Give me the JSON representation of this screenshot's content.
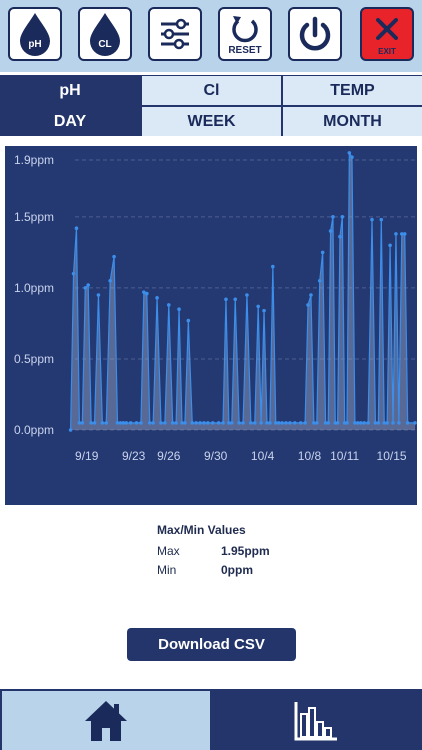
{
  "toolbar": {
    "ph_button": {
      "label": "pH",
      "icon": "ph-drop-icon"
    },
    "cl_button": {
      "label": "CL",
      "icon": "cl-drop-icon"
    },
    "settings_button": {
      "icon": "sliders-icon"
    },
    "reset_button": {
      "label": "RESET",
      "icon": "reset-icon"
    },
    "power_button": {
      "icon": "power-icon"
    },
    "exit_button": {
      "label": "EXIT",
      "icon": "close-icon"
    }
  },
  "tabs": {
    "sensor": [
      {
        "label": "pH",
        "active": true
      },
      {
        "label": "Cl",
        "active": false
      },
      {
        "label": "TEMP",
        "active": false
      }
    ],
    "range": [
      {
        "label": "DAY",
        "active": true
      },
      {
        "label": "WEEK",
        "active": false
      },
      {
        "label": "MONTH",
        "active": false
      }
    ]
  },
  "chart_data": {
    "type": "area",
    "title": "",
    "xlabel": "",
    "ylabel": "",
    "x_ticks": [
      "9/19",
      "9/23",
      "9/26",
      "9/30",
      "10/4",
      "10/8",
      "10/11",
      "10/15"
    ],
    "y_ticks": [
      "0.0ppm",
      "0.5ppm",
      "1.0ppm",
      "1.5ppm",
      "1.9ppm"
    ],
    "ylim": [
      0,
      1.9
    ],
    "xlim": [
      "9/18",
      "10/17"
    ],
    "grid": true,
    "colors": {
      "line": "#3b8eea",
      "fill": "#9aa6c4",
      "background": "#243872",
      "grid": "#4d5f92"
    },
    "series": [
      {
        "x": [
          "9/18",
          "9/18",
          "9/18",
          "9/18",
          "9/19",
          "9/19",
          "9/19",
          "9/19",
          "9/20",
          "9/20",
          "9/20",
          "9/21",
          "9/21",
          "9/21",
          "9/22",
          "9/22",
          "9/22",
          "9/22",
          "9/23",
          "9/23",
          "9/24",
          "9/24",
          "9/24",
          "9/24",
          "9/25",
          "9/25",
          "9/25",
          "9/26",
          "9/26",
          "9/26",
          "9/27",
          "9/27",
          "9/27",
          "9/27",
          "9/28",
          "9/28",
          "9/28",
          "9/29",
          "9/29",
          "9/29",
          "9/30",
          "9/30",
          "10/1",
          "10/1",
          "10/1",
          "10/1",
          "10/2",
          "10/2",
          "10/2",
          "10/3",
          "10/3",
          "10/3",
          "10/4",
          "10/4",
          "10/4",
          "10/4",
          "10/5",
          "10/5",
          "10/5",
          "10/5",
          "10/6",
          "10/6",
          "10/6",
          "10/7",
          "10/7",
          "10/8",
          "10/8",
          "10/8",
          "10/8",
          "10/9",
          "10/9",
          "10/9",
          "10/9",
          "10/10",
          "10/10",
          "10/10",
          "10/10",
          "10/10",
          "10/11",
          "10/11",
          "10/11",
          "10/11",
          "10/11",
          "10/12",
          "10/12",
          "10/12",
          "10/12",
          "10/13",
          "10/13",
          "10/13",
          "10/14",
          "10/14",
          "10/14",
          "10/14",
          "10/15",
          "10/15",
          "10/15",
          "10/15",
          "10/16",
          "10/16",
          "10/16",
          "10/16",
          "10/17"
        ],
        "y": [
          0.0,
          1.1,
          1.42,
          0.05,
          0.05,
          1.0,
          1.02,
          0.05,
          0.05,
          0.95,
          0.05,
          0.05,
          1.05,
          1.22,
          0.05,
          0.05,
          0.05,
          0.05,
          0.05,
          0.05,
          0.05,
          0.97,
          0.96,
          0.05,
          0.05,
          0.93,
          0.05,
          0.05,
          0.88,
          0.05,
          0.05,
          0.85,
          0.05,
          0.05,
          0.77,
          0.05,
          0.05,
          0.05,
          0.05,
          0.05,
          0.05,
          0.05,
          0.05,
          0.92,
          0.05,
          0.05,
          0.92,
          0.05,
          0.05,
          0.95,
          0.05,
          0.05,
          0.87,
          0.05,
          0.84,
          0.05,
          0.05,
          1.15,
          0.05,
          0.05,
          0.05,
          0.05,
          0.05,
          0.05,
          0.05,
          0.05,
          0.88,
          0.95,
          0.05,
          0.05,
          1.05,
          1.25,
          0.05,
          0.05,
          1.4,
          1.5,
          0.05,
          0.05,
          1.36,
          1.5,
          0.05,
          0.05,
          1.95,
          1.92,
          0.05,
          0.05,
          0.05,
          0.05,
          0.05,
          1.48,
          0.05,
          0.05,
          1.48,
          0.05,
          0.05,
          1.3,
          0.05,
          1.38,
          0.05,
          1.38,
          1.38,
          0.05,
          0.05
        ]
      }
    ]
  },
  "stats": {
    "title": "Max/Min Values",
    "max_label": "Max",
    "max_value": "1.95ppm",
    "min_label": "Min",
    "min_value": "0ppm"
  },
  "download_label": "Download CSV",
  "bottom_nav": [
    {
      "icon": "home-icon",
      "active": true
    },
    {
      "icon": "bar-chart-icon",
      "active": false
    }
  ]
}
